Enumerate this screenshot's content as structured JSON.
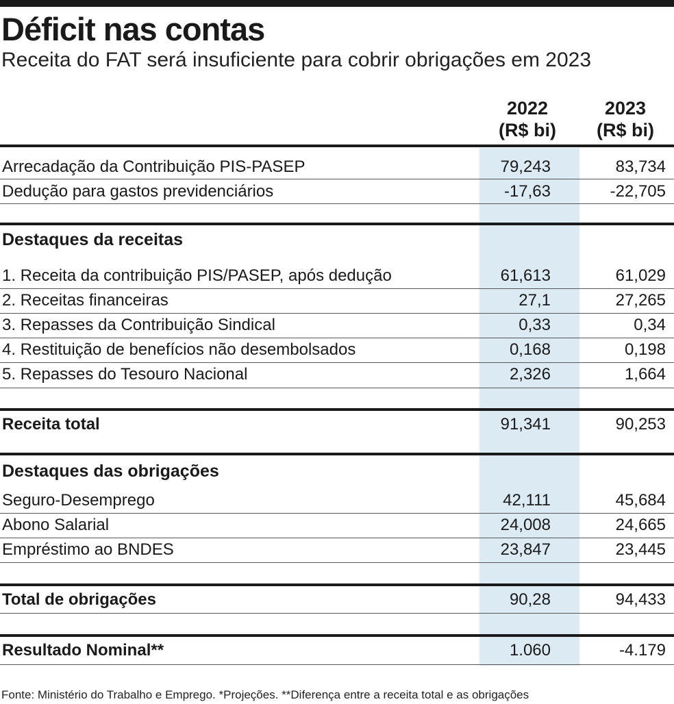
{
  "header": {
    "title": "Déficit nas contas",
    "subtitle": "Receita do FAT será insuficiente para cobrir obrigações em 2023"
  },
  "columns": [
    {
      "year": "2022",
      "unit": "(R$ bi)"
    },
    {
      "year": "2023",
      "unit": "(R$ bi)"
    }
  ],
  "top_rows": [
    {
      "label": "Arrecadação da Contribuição PIS-PASEP",
      "v2022": "79,243",
      "v2023": "83,734"
    },
    {
      "label": "Dedução para gastos previdenciários",
      "v2022": "-17,63",
      "v2023": "-22,705"
    }
  ],
  "receitas": {
    "heading": "Destaques da receitas",
    "rows": [
      {
        "label": "1. Receita da contribuição PIS/PASEP, após dedução",
        "v2022": "61,613",
        "v2023": "61,029"
      },
      {
        "label": "2. Receitas financeiras",
        "v2022": "27,1",
        "v2023": "27,265"
      },
      {
        "label": "3. Repasses da Contribuição Sindical",
        "v2022": "0,33",
        "v2023": "0,34"
      },
      {
        "label": "4. Restituição de benefícios não desembolsados",
        "v2022": "0,168",
        "v2023": "0,198"
      },
      {
        "label": "5. Repasses do Tesouro Nacional",
        "v2022": "2,326",
        "v2023": "1,664"
      }
    ],
    "total": {
      "label": "Receita total",
      "v2022": "91,341",
      "v2023": "90,253"
    }
  },
  "obrigacoes": {
    "heading": "Destaques das obrigações",
    "rows": [
      {
        "label": "Seguro-Desemprego",
        "v2022": "42,111",
        "v2023": "45,684"
      },
      {
        "label": "Abono Salarial",
        "v2022": "24,008",
        "v2023": "24,665"
      },
      {
        "label": "Empréstimo ao BNDES",
        "v2022": "23,847",
        "v2023": "23,445"
      }
    ],
    "total": {
      "label": "Total de obrigações",
      "v2022": "90,28",
      "v2023": "94,433"
    }
  },
  "resultado": {
    "label": "Resultado Nominal**",
    "v2022": "1.060",
    "v2023": "-4.179"
  },
  "footnote": "Fonte: Ministério do Trabalho e Emprego. *Projeções. **Diferença entre a receita total e as obrigações",
  "colors": {
    "highlight_column": "#dcebf3",
    "rules": "#1a1a1a"
  }
}
